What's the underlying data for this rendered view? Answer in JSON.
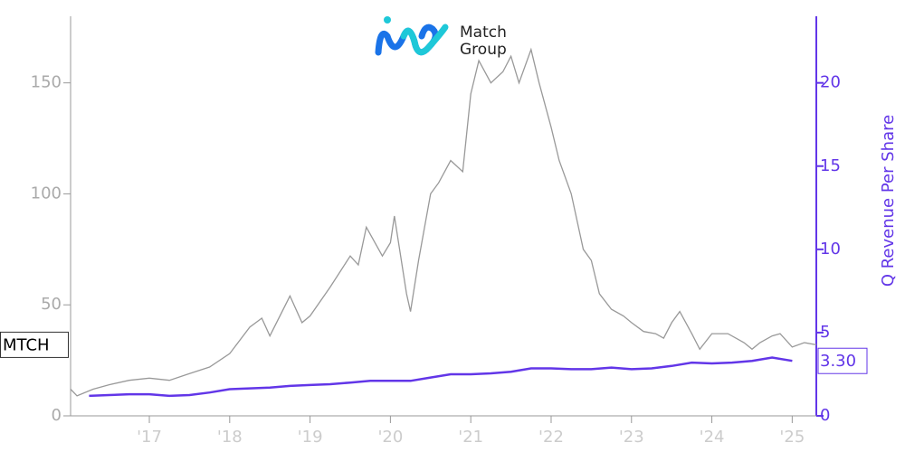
{
  "chart_data": {
    "type": "line",
    "logo_text": [
      "Match",
      "Group"
    ],
    "y2label": "Q Revenue Per Share",
    "xlim": [
      2016.02,
      2025.3
    ],
    "xticks": [
      {
        "value": 2017,
        "label": "'17"
      },
      {
        "value": 2018,
        "label": "'18"
      },
      {
        "value": 2019,
        "label": "'19"
      },
      {
        "value": 2020,
        "label": "'20"
      },
      {
        "value": 2021,
        "label": "'21"
      },
      {
        "value": 2022,
        "label": "'22"
      },
      {
        "value": 2023,
        "label": "'23"
      },
      {
        "value": 2024,
        "label": "'24"
      },
      {
        "value": 2025,
        "label": "'25"
      }
    ],
    "ylim": [
      0,
      180
    ],
    "yticks": [
      0,
      50,
      100,
      150
    ],
    "y2lim": [
      0,
      24
    ],
    "y2ticks": [
      0,
      5,
      10,
      15,
      20
    ],
    "series": [
      {
        "name": "MTCH",
        "color": "#999999",
        "axis": "y",
        "x": [
          2016.02,
          2016.1,
          2016.3,
          2016.5,
          2016.75,
          2017.0,
          2017.25,
          2017.5,
          2017.75,
          2018.0,
          2018.25,
          2018.4,
          2018.5,
          2018.75,
          2018.9,
          2019.0,
          2019.25,
          2019.5,
          2019.6,
          2019.7,
          2019.9,
          2020.0,
          2020.05,
          2020.2,
          2020.25,
          2020.35,
          2020.5,
          2020.6,
          2020.75,
          2020.9,
          2021.0,
          2021.1,
          2021.25,
          2021.4,
          2021.5,
          2021.6,
          2021.75,
          2021.85,
          2022.0,
          2022.1,
          2022.25,
          2022.4,
          2022.5,
          2022.6,
          2022.75,
          2022.9,
          2023.0,
          2023.15,
          2023.3,
          2023.4,
          2023.5,
          2023.6,
          2023.75,
          2023.85,
          2024.0,
          2024.2,
          2024.4,
          2024.5,
          2024.6,
          2024.75,
          2024.85,
          2025.0,
          2025.15,
          2025.3
        ],
        "values": [
          12,
          9,
          12,
          14,
          16,
          17,
          16,
          19,
          22,
          28,
          40,
          44,
          36,
          54,
          42,
          45,
          58,
          72,
          68,
          85,
          72,
          78,
          90,
          55,
          47,
          70,
          100,
          105,
          115,
          110,
          145,
          160,
          150,
          155,
          162,
          150,
          165,
          150,
          130,
          115,
          100,
          75,
          70,
          55,
          48,
          45,
          42,
          38,
          37,
          35,
          42,
          47,
          37,
          30,
          37,
          37,
          33,
          30,
          33,
          36,
          37,
          31,
          33,
          32
        ]
      },
      {
        "name": "Q Revenue Per Share",
        "color": "#6236e8",
        "axis": "y2",
        "x": [
          2016.25,
          2016.5,
          2016.75,
          2017.0,
          2017.25,
          2017.5,
          2017.75,
          2018.0,
          2018.25,
          2018.5,
          2018.75,
          2019.0,
          2019.25,
          2019.5,
          2019.75,
          2020.0,
          2020.25,
          2020.5,
          2020.75,
          2021.0,
          2021.25,
          2021.5,
          2021.75,
          2022.0,
          2022.25,
          2022.5,
          2022.75,
          2023.0,
          2023.25,
          2023.5,
          2023.75,
          2024.0,
          2024.25,
          2024.5,
          2024.75,
          2025.0
        ],
        "values": [
          1.2,
          1.25,
          1.3,
          1.3,
          1.2,
          1.25,
          1.4,
          1.6,
          1.65,
          1.7,
          1.8,
          1.85,
          1.9,
          2.0,
          2.1,
          2.1,
          2.1,
          2.3,
          2.5,
          2.5,
          2.55,
          2.65,
          2.85,
          2.85,
          2.8,
          2.8,
          2.9,
          2.8,
          2.85,
          3.0,
          3.2,
          3.15,
          3.2,
          3.3,
          3.5,
          3.3
        ],
        "value_labels": [
          null,
          null,
          null,
          null,
          null,
          null,
          null,
          null,
          null,
          null,
          null,
          null,
          null,
          null,
          null,
          null,
          null,
          null,
          null,
          null,
          null,
          null,
          null,
          null,
          null,
          null,
          null,
          null,
          null,
          null,
          null,
          null,
          null,
          null,
          null,
          "3.30"
        ]
      }
    ]
  }
}
